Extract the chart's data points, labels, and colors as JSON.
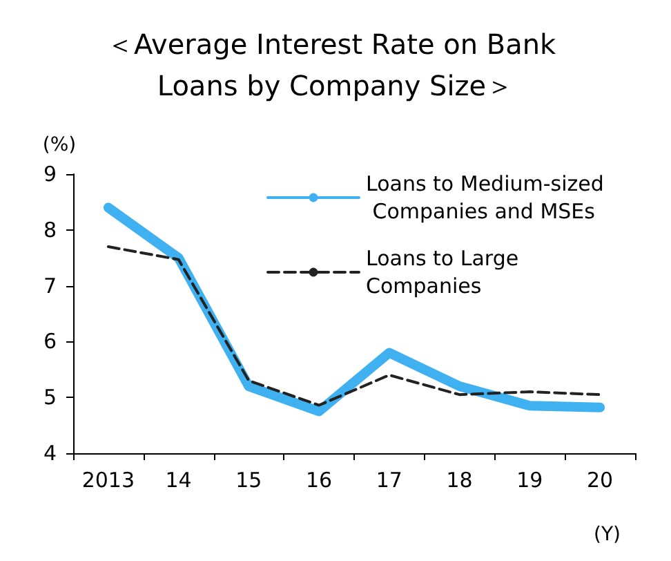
{
  "chart_data": {
    "type": "line",
    "title": "＜Average Interest Rate on Bank Loans by Company Size＞",
    "ylabel": "(%)",
    "xlabel": "(Y)",
    "categories": [
      "2013",
      "14",
      "15",
      "16",
      "17",
      "18",
      "19",
      "20"
    ],
    "series": [
      {
        "name": "Loans to Medium-sized Companies and MSEs",
        "color": "#3fb0f0",
        "values": [
          8.4,
          7.5,
          5.2,
          4.75,
          5.8,
          5.2,
          4.85,
          4.82
        ],
        "line_style": "solid"
      },
      {
        "name": "Loans to Large Companies",
        "color": "#222222",
        "values": [
          7.7,
          7.47,
          5.3,
          4.86,
          5.4,
          5.05,
          5.1,
          5.05
        ],
        "line_style": "dashed"
      }
    ],
    "ylim": [
      4,
      9
    ],
    "yticks": [
      4,
      5,
      6,
      7,
      8,
      9
    ],
    "grid": false,
    "legend": "top right",
    "marker": "none"
  }
}
